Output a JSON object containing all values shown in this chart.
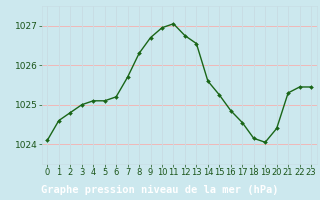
{
  "x": [
    0,
    1,
    2,
    3,
    4,
    5,
    6,
    7,
    8,
    9,
    10,
    11,
    12,
    13,
    14,
    15,
    16,
    17,
    18,
    19,
    20,
    21,
    22,
    23
  ],
  "y": [
    1024.1,
    1024.6,
    1024.8,
    1025.0,
    1025.1,
    1025.1,
    1025.2,
    1025.7,
    1026.3,
    1026.7,
    1026.95,
    1027.05,
    1026.75,
    1026.55,
    1025.6,
    1025.25,
    1024.85,
    1024.55,
    1024.15,
    1024.05,
    1024.4,
    1025.3,
    1025.45,
    1025.45
  ],
  "line_color": "#1a6618",
  "marker_color": "#1a6618",
  "bg_color": "#cce8ee",
  "grid_color_h": "#f0b8b8",
  "grid_color_v": "#c8dde4",
  "xlabel": "Graphe pression niveau de la mer (hPa)",
  "ylim": [
    1023.5,
    1027.5
  ],
  "xlim": [
    -0.5,
    23.5
  ],
  "yticks": [
    1024,
    1025,
    1026,
    1027
  ],
  "xtick_labels": [
    "0",
    "1",
    "2",
    "3",
    "4",
    "5",
    "6",
    "7",
    "8",
    "9",
    "10",
    "11",
    "12",
    "13",
    "14",
    "15",
    "16",
    "17",
    "18",
    "19",
    "20",
    "21",
    "22",
    "23"
  ],
  "label_bg_color": "#2d5a1b",
  "label_text_color": "#ffffff",
  "xlabel_fontsize": 7.5,
  "tick_fontsize": 6,
  "ytick_fontsize": 6.5,
  "tick_color": "#1a5518"
}
